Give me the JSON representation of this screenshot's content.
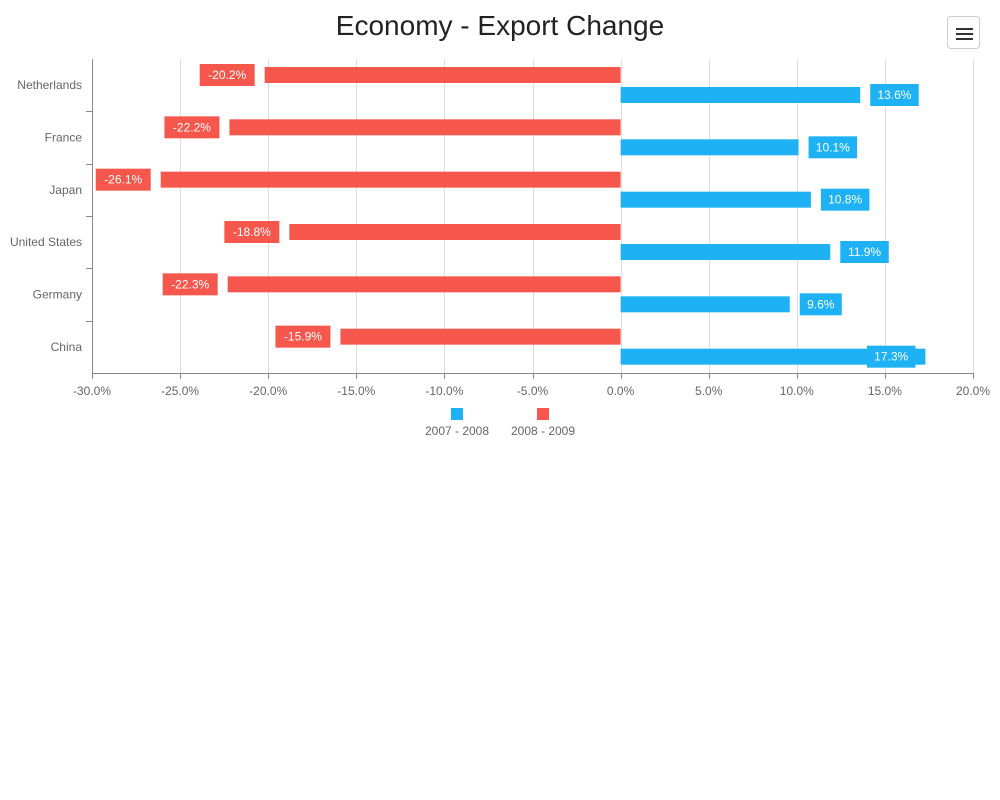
{
  "title": "Economy - Export Change",
  "menu": {
    "icon": "hamburger-menu-icon"
  },
  "colors": {
    "series_2007_2008": "#1eb2f4",
    "series_2008_2009": "#f5574d",
    "axis": "#888888",
    "grid": "#dddddd"
  },
  "chart_data": {
    "type": "bar",
    "orientation": "horizontal",
    "title": "Economy - Export Change",
    "categories": [
      "Netherlands",
      "France",
      "Japan",
      "United States",
      "Germany",
      "China"
    ],
    "series": [
      {
        "name": "2007 - 2008",
        "values": [
          13.6,
          10.1,
          10.8,
          11.9,
          9.6,
          17.3
        ],
        "labels": [
          "13.6%",
          "10.1%",
          "10.8%",
          "11.9%",
          "9.6%",
          "17.3%"
        ]
      },
      {
        "name": "2008 - 2009",
        "values": [
          -20.2,
          -22.2,
          -26.1,
          -18.8,
          -22.3,
          -15.9
        ],
        "labels": [
          "-20.2%",
          "-22.2%",
          "-26.1%",
          "-18.8%",
          "-22.3%",
          "-15.9%"
        ]
      }
    ],
    "xlim": [
      -30,
      20
    ],
    "xticks": [
      -30,
      -25,
      -20,
      -15,
      -10,
      -5,
      0,
      5,
      10,
      15,
      20
    ],
    "xtick_labels": [
      "-30.0%",
      "-25.0%",
      "-20.0%",
      "-15.0%",
      "-10.0%",
      "-5.0%",
      "0.0%",
      "5.0%",
      "10.0%",
      "15.0%",
      "20.0%"
    ],
    "grid": true,
    "legend": "bottom-center"
  }
}
